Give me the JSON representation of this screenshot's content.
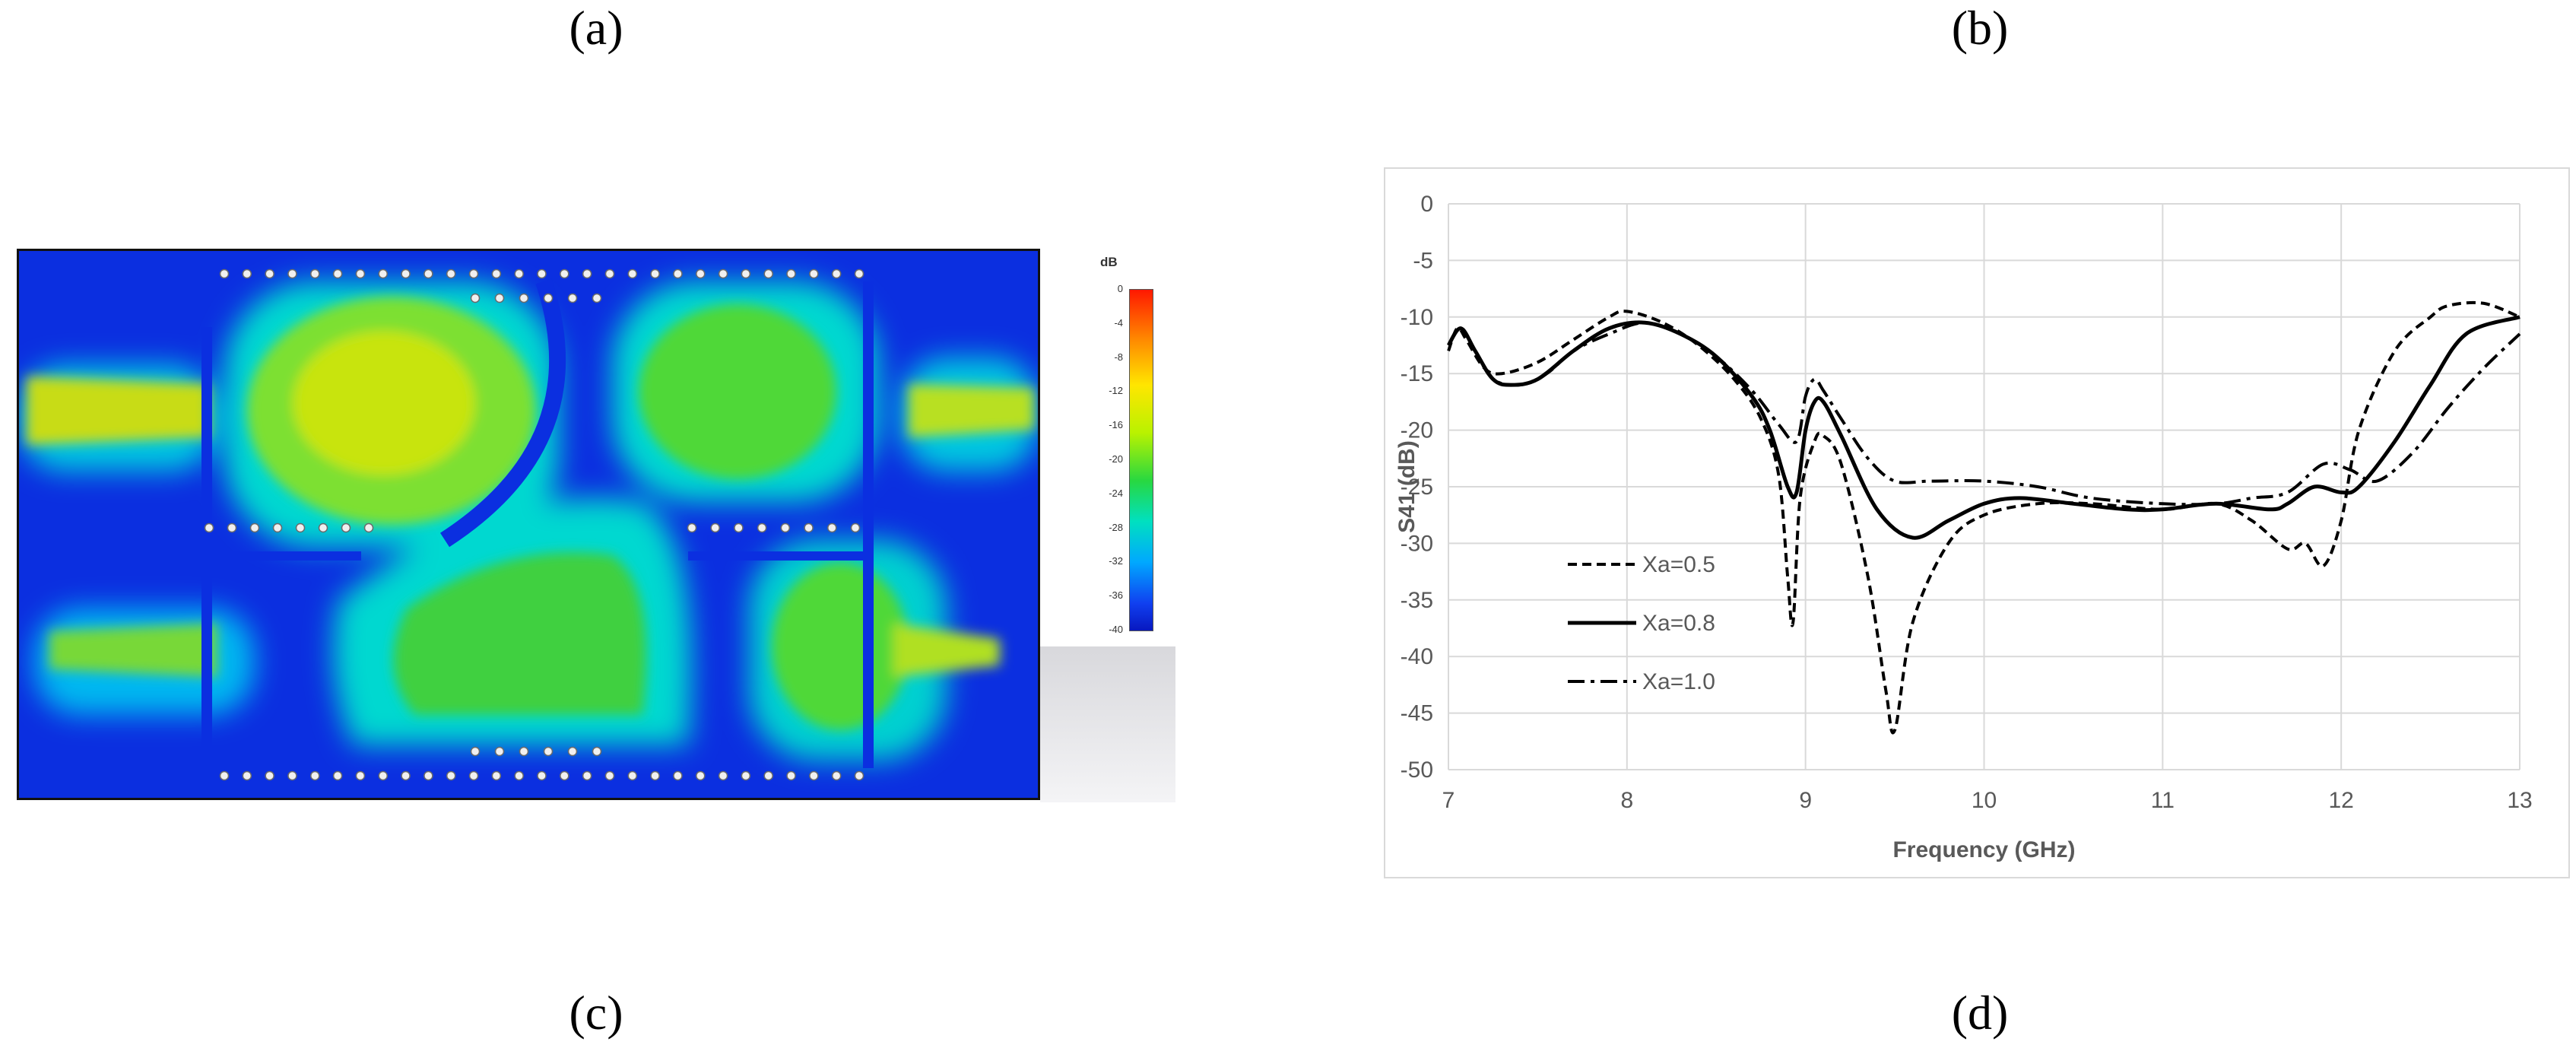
{
  "panel_labels": {
    "a": "(a)",
    "b": "(b)",
    "c": "(c)",
    "d": "(d)"
  },
  "field_plot": {
    "colorbar_unit": "dB",
    "colorbar_ticks": [
      "0",
      "-4",
      "-8",
      "-12",
      "-16",
      "-20",
      "-24",
      "-28",
      "-32",
      "-36",
      "-40"
    ],
    "colors": {
      "background": "#0b2fe0",
      "via": "#f0f0f0"
    }
  },
  "chart_data": {
    "type": "line",
    "xlabel": "Frequency (GHz)",
    "ylabel": "S41 (dB)",
    "xlim": [
      7,
      13
    ],
    "ylim": [
      -50,
      0
    ],
    "xticks": [
      7,
      8,
      9,
      10,
      11,
      12,
      13
    ],
    "yticks": [
      0,
      -5,
      -10,
      -15,
      -20,
      -25,
      -30,
      -35,
      -40,
      -45,
      -50
    ],
    "grid": true,
    "legend_placement": "bottom-left",
    "series": [
      {
        "name": "Xa=0.5",
        "style": "dashed",
        "color": "#000000",
        "x": [
          7,
          7.05,
          7.1,
          7.2,
          7.3,
          7.5,
          7.7,
          7.9,
          8.0,
          8.2,
          8.4,
          8.6,
          8.75,
          8.85,
          8.9,
          8.93,
          8.97,
          9.05,
          9.1,
          9.2,
          9.35,
          9.45,
          9.5,
          9.6,
          9.8,
          10.0,
          10.3,
          10.6,
          11.0,
          11.3,
          11.5,
          11.7,
          11.8,
          11.9,
          12.0,
          12.1,
          12.3,
          12.5,
          12.6,
          12.8,
          13.0
        ],
        "y": [
          -13,
          -11,
          -12,
          -14.5,
          -15,
          -14,
          -12,
          -10,
          -9.5,
          -10.5,
          -12.5,
          -15.5,
          -19,
          -24,
          -33,
          -37,
          -26,
          -21,
          -20.5,
          -23,
          -33,
          -43,
          -46.5,
          -37,
          -30,
          -27.5,
          -26.5,
          -26.5,
          -27,
          -26.5,
          -28,
          -30.5,
          -30,
          -32,
          -28,
          -20,
          -13,
          -10,
          -9,
          -8.8,
          -10
        ]
      },
      {
        "name": "Xa=0.8",
        "style": "solid",
        "color": "#000000",
        "x": [
          7,
          7.07,
          7.15,
          7.25,
          7.35,
          7.5,
          7.7,
          7.9,
          8.1,
          8.3,
          8.5,
          8.7,
          8.8,
          8.9,
          8.95,
          9.0,
          9.05,
          9.1,
          9.2,
          9.4,
          9.6,
          9.8,
          10.0,
          10.2,
          10.5,
          10.8,
          11.0,
          11.3,
          11.6,
          11.7,
          11.85,
          12.0,
          12.1,
          12.3,
          12.5,
          12.7,
          13.0
        ],
        "y": [
          -12.5,
          -11,
          -13,
          -15.5,
          -16,
          -15.5,
          -13,
          -11,
          -10.5,
          -11.5,
          -13.5,
          -17,
          -20,
          -25,
          -25.5,
          -20,
          -17.5,
          -17.5,
          -20.5,
          -27,
          -29.5,
          -28,
          -26.5,
          -26,
          -26.5,
          -27,
          -27,
          -26.5,
          -27,
          -26.5,
          -25,
          -25.5,
          -25,
          -21,
          -16,
          -11.5,
          -10
        ]
      },
      {
        "name": "Xa=1.0",
        "style": "dash-dot",
        "color": "#000000",
        "x": [
          7,
          7.07,
          7.15,
          7.25,
          7.4,
          7.55,
          7.7,
          7.9,
          8.1,
          8.3,
          8.5,
          8.7,
          8.85,
          8.95,
          9.0,
          9.05,
          9.1,
          9.2,
          9.35,
          9.5,
          9.7,
          10.0,
          10.3,
          10.6,
          11.0,
          11.3,
          11.5,
          11.7,
          11.9,
          12.05,
          12.2,
          12.4,
          12.6,
          12.8,
          13.0
        ],
        "y": [
          -12.5,
          -11,
          -13,
          -15.5,
          -16,
          -15,
          -13,
          -11.5,
          -10.5,
          -11.5,
          -13.5,
          -16.5,
          -19.5,
          -21,
          -17,
          -15.5,
          -16.5,
          -19,
          -22.5,
          -24.5,
          -24.5,
          -24.5,
          -25,
          -26,
          -26.5,
          -26.5,
          -26,
          -25.5,
          -23,
          -23.5,
          -24.5,
          -22,
          -18,
          -14.5,
          -11.5
        ]
      }
    ]
  }
}
